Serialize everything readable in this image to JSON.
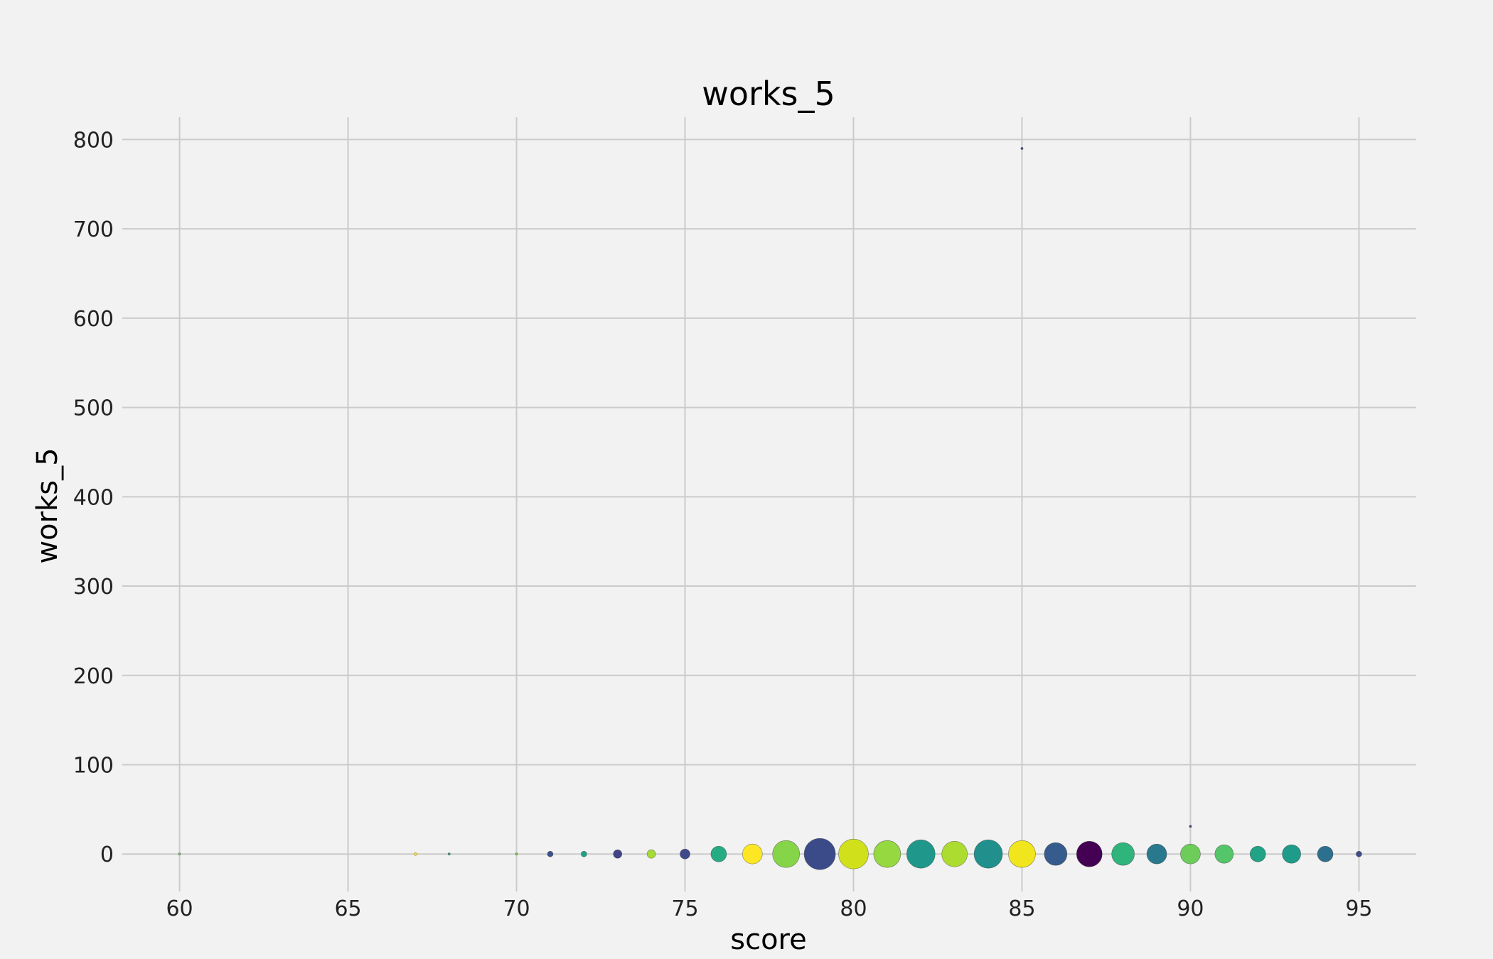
{
  "chart_data": {
    "type": "scatter",
    "title": "works_5",
    "xlabel": "score",
    "ylabel": "works_5",
    "xlim": [
      58.3,
      96.7
    ],
    "ylim": [
      -42,
      825
    ],
    "xticks": [
      60,
      65,
      70,
      75,
      80,
      85,
      90,
      95
    ],
    "yticks": [
      0,
      100,
      200,
      300,
      400,
      500,
      600,
      700,
      800
    ],
    "grid": true,
    "colormap": "viridis",
    "points": [
      {
        "x": 60,
        "y": 0,
        "size": 1,
        "color": "#7ad151"
      },
      {
        "x": 67,
        "y": 0,
        "size": 2,
        "color": "#fde725"
      },
      {
        "x": 68,
        "y": 0,
        "size": 1,
        "color": "#22a884"
      },
      {
        "x": 70,
        "y": 0,
        "size": 1,
        "color": "#7ad151"
      },
      {
        "x": 71,
        "y": 0,
        "size": 4,
        "color": "#3b528b"
      },
      {
        "x": 72,
        "y": 0,
        "size": 4,
        "color": "#1fa187"
      },
      {
        "x": 73,
        "y": 0,
        "size": 6,
        "color": "#414487"
      },
      {
        "x": 74,
        "y": 0,
        "size": 6,
        "color": "#a5db36"
      },
      {
        "x": 75,
        "y": 0,
        "size": 7,
        "color": "#3e4a89"
      },
      {
        "x": 76,
        "y": 0,
        "size": 11,
        "color": "#25ac82"
      },
      {
        "x": 77,
        "y": 0,
        "size": 14,
        "color": "#fde725"
      },
      {
        "x": 78,
        "y": 0,
        "size": 19,
        "color": "#86d549"
      },
      {
        "x": 79,
        "y": 0,
        "size": 22,
        "color": "#3b4b8a"
      },
      {
        "x": 80,
        "y": 0,
        "size": 21,
        "color": "#d0e11c"
      },
      {
        "x": 81,
        "y": 0,
        "size": 19,
        "color": "#95d840"
      },
      {
        "x": 82,
        "y": 0,
        "size": 20,
        "color": "#1f988b"
      },
      {
        "x": 83,
        "y": 0,
        "size": 18,
        "color": "#addc30"
      },
      {
        "x": 84,
        "y": 0,
        "size": 20,
        "color": "#21908d"
      },
      {
        "x": 85,
        "y": 0,
        "size": 19,
        "color": "#f1e51d"
      },
      {
        "x": 85,
        "y": 790,
        "size": 1,
        "color": "#3b528b"
      },
      {
        "x": 86,
        "y": 0,
        "size": 16,
        "color": "#365c8d"
      },
      {
        "x": 87,
        "y": 0,
        "size": 18,
        "color": "#440154"
      },
      {
        "x": 88,
        "y": 0,
        "size": 16,
        "color": "#2fb47c"
      },
      {
        "x": 89,
        "y": 0,
        "size": 14,
        "color": "#2a788e"
      },
      {
        "x": 90,
        "y": 0,
        "size": 14,
        "color": "#6ccd5a"
      },
      {
        "x": 90,
        "y": 31,
        "size": 1,
        "color": "#414487"
      },
      {
        "x": 91,
        "y": 0,
        "size": 13,
        "color": "#54c568"
      },
      {
        "x": 92,
        "y": 0,
        "size": 11,
        "color": "#20a386"
      },
      {
        "x": 93,
        "y": 0,
        "size": 13,
        "color": "#1e9c89"
      },
      {
        "x": 94,
        "y": 0,
        "size": 11,
        "color": "#2d708e"
      },
      {
        "x": 95,
        "y": 0,
        "size": 4,
        "color": "#3e4a89"
      }
    ]
  }
}
